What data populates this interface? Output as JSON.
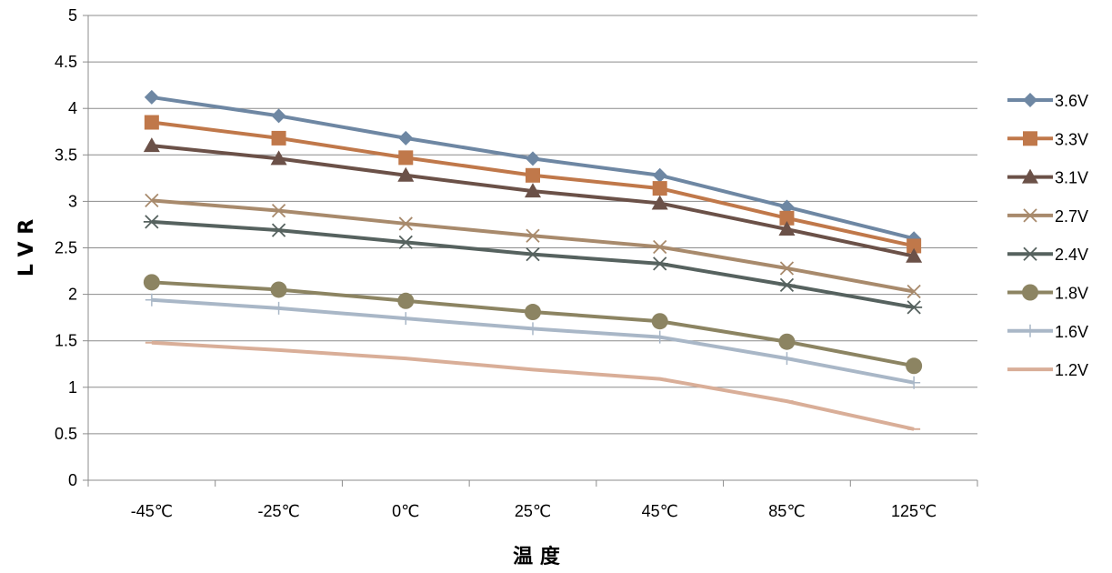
{
  "chart_data": {
    "type": "line",
    "title": "",
    "xlabel": "温 度",
    "ylabel": "L V R",
    "categories": [
      "-45℃",
      "-25℃",
      "0℃",
      "25℃",
      "45℃",
      "85℃",
      "125℃"
    ],
    "ylim": [
      0,
      5
    ],
    "yticks": [
      "0",
      "0.5",
      "1",
      "1.5",
      "2",
      "2.5",
      "3",
      "3.5",
      "4",
      "4.5",
      "5"
    ],
    "grid": true,
    "legend_position": "right",
    "series": [
      {
        "name": "3.6V",
        "marker": "diamond",
        "color": "#6e87a3",
        "values": [
          4.12,
          3.92,
          3.68,
          3.46,
          3.28,
          2.94,
          2.6
        ]
      },
      {
        "name": "3.3V",
        "marker": "square",
        "color": "#c0784a",
        "values": [
          3.85,
          3.68,
          3.47,
          3.28,
          3.14,
          2.82,
          2.52
        ]
      },
      {
        "name": "3.1V",
        "marker": "triangle",
        "color": "#6b5148",
        "values": [
          3.6,
          3.46,
          3.28,
          3.11,
          2.98,
          2.7,
          2.41
        ]
      },
      {
        "name": "2.7V",
        "marker": "x",
        "color": "#a88a6c",
        "values": [
          3.01,
          2.9,
          2.76,
          2.63,
          2.51,
          2.28,
          2.03
        ]
      },
      {
        "name": "2.4V",
        "marker": "star",
        "color": "#56625f",
        "values": [
          2.78,
          2.69,
          2.56,
          2.43,
          2.33,
          2.1,
          1.86
        ]
      },
      {
        "name": "1.8V",
        "marker": "circle",
        "color": "#8c8462",
        "values": [
          2.13,
          2.05,
          1.93,
          1.81,
          1.71,
          1.49,
          1.23
        ]
      },
      {
        "name": "1.6V",
        "marker": "plus",
        "color": "#a9b7c7",
        "values": [
          1.94,
          1.85,
          1.74,
          1.63,
          1.54,
          1.31,
          1.05
        ]
      },
      {
        "name": "1.2V",
        "marker": "dash",
        "color": "#d9ae98",
        "values": [
          1.48,
          1.4,
          1.31,
          1.19,
          1.09,
          0.85,
          0.55
        ]
      }
    ]
  }
}
